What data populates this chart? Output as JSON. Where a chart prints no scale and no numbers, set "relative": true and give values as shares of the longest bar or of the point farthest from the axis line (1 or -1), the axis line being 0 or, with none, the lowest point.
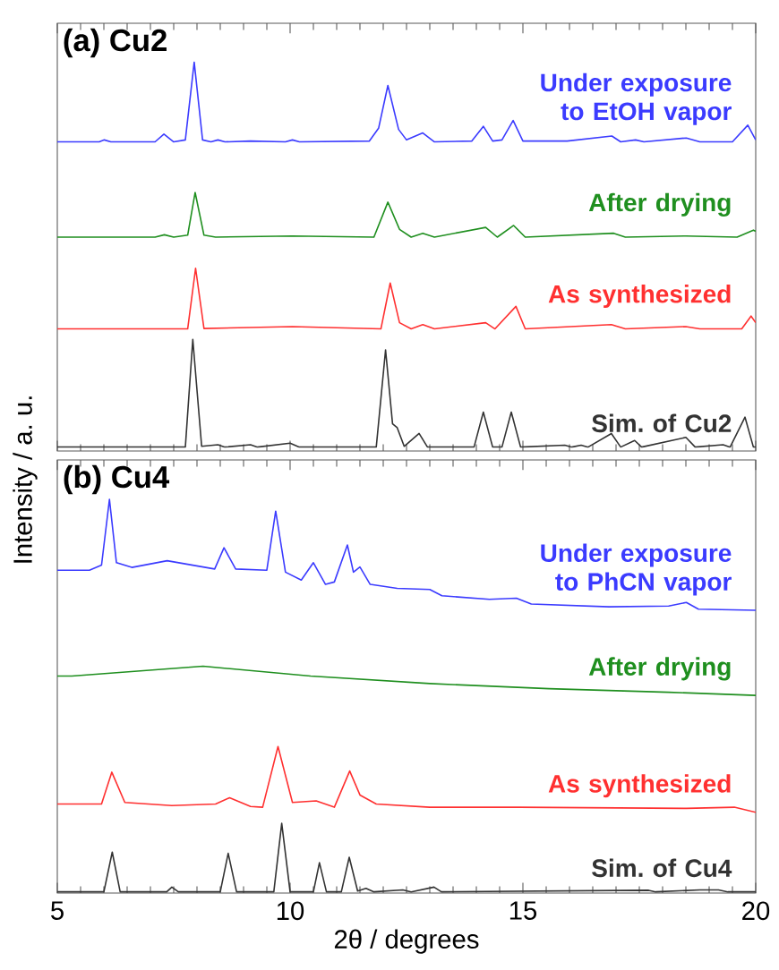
{
  "chart_data": [
    {
      "type": "line",
      "title": "(a) Cu2",
      "ylabel": "Intensity / a. u.",
      "relative": true,
      "xlim": [
        5,
        20
      ],
      "xticks": [
        5,
        10,
        15,
        20
      ],
      "tick_labels": false,
      "series": [
        {
          "name": "Under exposure to EtOH vapor",
          "color": "#3b3bff",
          "x": [
            5,
            5.9,
            6.01,
            6.15,
            7.1,
            7.29,
            7.5,
            7.75,
            7.94,
            8.12,
            8.3,
            8.45,
            8.6,
            9.15,
            9.9,
            10.05,
            10.2,
            11.7,
            11.9,
            12.1,
            12.33,
            12.5,
            12.85,
            13.1,
            13.9,
            14.15,
            14.35,
            14.55,
            14.79,
            15.0,
            15.95,
            16.91,
            17.1,
            17.42,
            17.6,
            18.51,
            18.8,
            19.5,
            19.83,
            20
          ],
          "values": [
            0.795,
            0.795,
            0.8,
            0.795,
            0.795,
            0.815,
            0.795,
            0.8,
            1.0,
            0.8,
            0.795,
            0.8,
            0.795,
            0.797,
            0.795,
            0.8,
            0.795,
            0.797,
            0.83,
            0.94,
            0.827,
            0.8,
            0.818,
            0.795,
            0.797,
            0.835,
            0.797,
            0.8,
            0.85,
            0.797,
            0.797,
            0.81,
            0.795,
            0.8,
            0.795,
            0.805,
            0.795,
            0.795,
            0.838,
            0.8
          ]
        },
        {
          "name": "After drying",
          "color": "#1f8f1f",
          "x": [
            5,
            7.1,
            7.3,
            7.5,
            7.8,
            7.96,
            8.15,
            8.4,
            10.05,
            11.8,
            12.1,
            12.35,
            12.6,
            12.85,
            13.1,
            14.2,
            14.45,
            14.8,
            15.05,
            16.95,
            17.2,
            18.5,
            19.6,
            19.95,
            20
          ],
          "values": [
            0.55,
            0.55,
            0.556,
            0.55,
            0.555,
            0.665,
            0.555,
            0.55,
            0.553,
            0.55,
            0.64,
            0.57,
            0.55,
            0.56,
            0.55,
            0.575,
            0.55,
            0.58,
            0.55,
            0.56,
            0.55,
            0.553,
            0.55,
            0.568,
            0.565
          ]
        },
        {
          "name": "As synthesized",
          "color": "#ff3030",
          "x": [
            5,
            7.8,
            7.97,
            8.15,
            10.05,
            11.95,
            12.15,
            12.35,
            12.6,
            12.85,
            13.1,
            14.2,
            14.4,
            14.85,
            15.05,
            16.9,
            17.2,
            18.5,
            18.8,
            19.7,
            19.9,
            20
          ],
          "values": [
            0.314,
            0.314,
            0.47,
            0.315,
            0.32,
            0.314,
            0.432,
            0.33,
            0.314,
            0.325,
            0.314,
            0.33,
            0.314,
            0.372,
            0.314,
            0.325,
            0.314,
            0.32,
            0.314,
            0.314,
            0.347,
            0.33
          ]
        },
        {
          "name": "Sim. of Cu2",
          "color": "#333333",
          "x": [
            5,
            7.75,
            7.91,
            8.1,
            8.45,
            8.6,
            9.15,
            9.3,
            10.0,
            10.2,
            11.85,
            12.05,
            12.2,
            12.3,
            12.45,
            12.77,
            12.95,
            13.95,
            14.15,
            14.35,
            14.55,
            14.75,
            14.95,
            15.9,
            16.05,
            16.25,
            16.4,
            16.9,
            17.1,
            17.4,
            17.55,
            18.5,
            18.7,
            19.3,
            19.45,
            19.77,
            19.95,
            20
          ],
          "values": [
            0.01,
            0.01,
            0.287,
            0.012,
            0.016,
            0.01,
            0.016,
            0.01,
            0.02,
            0.01,
            0.01,
            0.26,
            0.07,
            0.06,
            0.012,
            0.045,
            0.01,
            0.01,
            0.1,
            0.01,
            0.01,
            0.1,
            0.01,
            0.015,
            0.01,
            0.015,
            0.01,
            0.045,
            0.01,
            0.027,
            0.01,
            0.035,
            0.01,
            0.016,
            0.01,
            0.087,
            0.01,
            0.01
          ]
        }
      ]
    },
    {
      "type": "line",
      "title": "(b) Cu4",
      "xlabel": "2θ / degrees",
      "relative": true,
      "xlim": [
        5,
        20
      ],
      "xticks": [
        5,
        10,
        15,
        20
      ],
      "tick_labels": "x",
      "series": [
        {
          "name": "Under exposure to PhCN vapor",
          "color": "#3b3bff",
          "x": [
            5,
            5.69,
            5.95,
            6.12,
            6.27,
            6.6,
            7.36,
            8.38,
            8.58,
            8.83,
            9.5,
            9.69,
            9.9,
            10.24,
            10.5,
            10.76,
            10.95,
            11.23,
            11.36,
            11.5,
            11.72,
            12.3,
            13.0,
            13.26,
            14.28,
            14.86,
            15.18,
            16.85,
            18.13,
            18.51,
            18.77,
            20
          ],
          "values": [
            0.82,
            0.82,
            0.833,
            1.0,
            0.839,
            0.827,
            0.844,
            0.823,
            0.877,
            0.823,
            0.82,
            0.97,
            0.815,
            0.795,
            0.839,
            0.784,
            0.79,
            0.884,
            0.815,
            0.828,
            0.784,
            0.774,
            0.771,
            0.755,
            0.746,
            0.749,
            0.734,
            0.727,
            0.729,
            0.738,
            0.721,
            0.718
          ]
        },
        {
          "name": "After drying",
          "color": "#1f8f1f",
          "x": [
            5,
            5.31,
            8.13,
            10.44,
            13.0,
            15.56,
            18.13,
            20
          ],
          "values": [
            0.551,
            0.551,
            0.576,
            0.551,
            0.532,
            0.519,
            0.51,
            0.502
          ]
        },
        {
          "name": "As synthesized",
          "color": "#ff3030",
          "x": [
            5,
            5.95,
            6.17,
            6.45,
            7.46,
            8.4,
            8.7,
            9.15,
            9.41,
            9.74,
            10.05,
            10.56,
            10.95,
            11.28,
            11.5,
            11.85,
            13.0,
            14.92,
            18.51,
            19.54,
            20
          ],
          "values": [
            0.226,
            0.226,
            0.307,
            0.23,
            0.222,
            0.226,
            0.242,
            0.22,
            0.218,
            0.372,
            0.23,
            0.234,
            0.218,
            0.31,
            0.249,
            0.226,
            0.218,
            0.218,
            0.215,
            0.218,
            0.205
          ]
        },
        {
          "name": "Sim. of Cu4",
          "color": "#333333",
          "x": [
            5,
            6.0,
            6.18,
            6.35,
            7.35,
            7.46,
            7.6,
            8.5,
            8.67,
            8.85,
            9.65,
            9.82,
            10.0,
            10.5,
            10.63,
            10.78,
            11.1,
            11.27,
            11.45,
            11.63,
            11.8,
            12.42,
            12.6,
            13.09,
            13.25,
            17.7,
            17.85,
            18.8,
            19.2,
            19.4,
            20
          ],
          "values": [
            0.003,
            0.003,
            0.104,
            0.003,
            0.003,
            0.015,
            0.003,
            0.003,
            0.101,
            0.003,
            0.003,
            0.177,
            0.003,
            0.003,
            0.077,
            0.003,
            0.003,
            0.091,
            0.005,
            0.012,
            0.003,
            0.008,
            0.003,
            0.015,
            0.003,
            0.007,
            0.003,
            0.008,
            0.008,
            0.003,
            0.003
          ]
        }
      ]
    }
  ]
}
